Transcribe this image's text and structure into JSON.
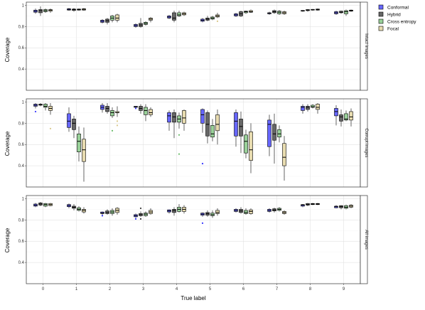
{
  "chart_data": {
    "type": "box",
    "xlabel": "True label",
    "ylabel": "Coverage",
    "categories": [
      "0",
      "1",
      "2",
      "3",
      "4",
      "5",
      "6",
      "7",
      "8",
      "9"
    ],
    "ylim": [
      0.2,
      1.03
    ],
    "yticks": [
      0.4,
      0.6,
      0.8,
      1
    ],
    "ytick_labels": [
      "0.4",
      "0.6",
      "0.8",
      "1"
    ],
    "grid": true,
    "legend_position": "top-right",
    "series": [
      {
        "name": "Conformal",
        "color": "#3333ff"
      },
      {
        "name": "Hybrid",
        "color": "#333333"
      },
      {
        "name": "Cross entropy",
        "color": "#66bb66"
      },
      {
        "name": "Focal",
        "color": "#d9c88a"
      }
    ],
    "panels": [
      {
        "strip": "Intact images",
        "boxes": [
          [
            [
              0.92,
              0.935,
              0.945,
              0.955,
              0.97,
              []
            ],
            [
              0.9,
              0.93,
              0.95,
              0.96,
              0.99,
              []
            ],
            [
              0.93,
              0.94,
              0.95,
              0.96,
              0.97,
              []
            ],
            [
              0.93,
              0.945,
              0.955,
              0.96,
              0.97,
              []
            ]
          ],
          [
            [
              0.95,
              0.955,
              0.962,
              0.968,
              0.975,
              []
            ],
            [
              0.94,
              0.952,
              0.96,
              0.965,
              0.975,
              []
            ],
            [
              0.95,
              0.955,
              0.96,
              0.965,
              0.97,
              []
            ],
            [
              0.95,
              0.955,
              0.962,
              0.968,
              0.975,
              []
            ]
          ],
          [
            [
              0.83,
              0.84,
              0.85,
              0.86,
              0.87,
              []
            ],
            [
              0.82,
              0.84,
              0.855,
              0.87,
              0.88,
              []
            ],
            [
              0.84,
              0.86,
              0.88,
              0.9,
              0.91,
              []
            ],
            [
              0.84,
              0.86,
              0.88,
              0.91,
              0.92,
              []
            ]
          ],
          [
            [
              0.79,
              0.8,
              0.81,
              0.82,
              0.83,
              []
            ],
            [
              0.79,
              0.8,
              0.815,
              0.83,
              0.88,
              []
            ],
            [
              0.81,
              0.82,
              0.83,
              0.84,
              0.85,
              []
            ],
            [
              0.84,
              0.86,
              0.87,
              0.88,
              0.89,
              []
            ]
          ],
          [
            [
              0.87,
              0.88,
              0.89,
              0.9,
              0.91,
              []
            ],
            [
              0.84,
              0.86,
              0.88,
              0.93,
              0.95,
              []
            ],
            [
              0.89,
              0.9,
              0.91,
              0.93,
              0.95,
              []
            ],
            [
              0.9,
              0.91,
              0.92,
              0.93,
              0.94,
              []
            ]
          ],
          [
            [
              0.84,
              0.85,
              0.86,
              0.87,
              0.88,
              []
            ],
            [
              0.85,
              0.86,
              0.87,
              0.88,
              0.9,
              []
            ],
            [
              0.86,
              0.87,
              0.88,
              0.89,
              0.9,
              []
            ],
            [
              0.88,
              0.89,
              0.9,
              0.91,
              0.93,
              [
                0.85
              ]
            ]
          ],
          [
            [
              0.89,
              0.9,
              0.91,
              0.92,
              0.93,
              []
            ],
            [
              0.89,
              0.9,
              0.92,
              0.94,
              0.95,
              []
            ],
            [
              0.92,
              0.93,
              0.94,
              0.945,
              0.95,
              []
            ],
            [
              0.93,
              0.935,
              0.94,
              0.95,
              0.96,
              []
            ]
          ],
          [
            [
              0.91,
              0.92,
              0.925,
              0.93,
              0.94,
              []
            ],
            [
              0.92,
              0.93,
              0.94,
              0.95,
              0.96,
              []
            ],
            [
              0.91,
              0.92,
              0.935,
              0.945,
              0.955,
              []
            ],
            [
              0.91,
              0.92,
              0.93,
              0.94,
              0.95,
              []
            ]
          ],
          [
            [
              0.94,
              0.945,
              0.948,
              0.952,
              0.955,
              []
            ],
            [
              0.94,
              0.95,
              0.955,
              0.96,
              0.965,
              []
            ],
            [
              0.95,
              0.955,
              0.958,
              0.962,
              0.965,
              []
            ],
            [
              0.95,
              0.955,
              0.96,
              0.965,
              0.97,
              []
            ]
          ],
          [
            [
              0.91,
              0.92,
              0.93,
              0.94,
              0.95,
              []
            ],
            [
              0.92,
              0.93,
              0.935,
              0.945,
              0.95,
              []
            ],
            [
              0.9,
              0.92,
              0.94,
              0.95,
              0.96,
              []
            ],
            [
              0.94,
              0.945,
              0.95,
              0.955,
              0.96,
              []
            ]
          ]
        ]
      },
      {
        "strip": "Corrupt images",
        "boxes": [
          [
            [
              0.94,
              0.96,
              0.97,
              0.98,
              0.99,
              [
                0.91
              ]
            ],
            [
              0.96,
              0.97,
              0.975,
              0.98,
              0.99,
              []
            ],
            [
              0.92,
              0.95,
              0.96,
              0.98,
              0.99,
              []
            ],
            [
              0.88,
              0.92,
              0.94,
              0.96,
              0.99,
              [
                0.75
              ]
            ]
          ],
          [
            [
              0.72,
              0.76,
              0.82,
              0.89,
              0.95,
              []
            ],
            [
              0.66,
              0.74,
              0.8,
              0.84,
              0.87,
              []
            ],
            [
              0.44,
              0.53,
              0.63,
              0.7,
              0.77,
              []
            ],
            [
              0.25,
              0.44,
              0.55,
              0.65,
              0.76,
              []
            ]
          ],
          [
            [
              0.9,
              0.93,
              0.95,
              0.97,
              0.99,
              []
            ],
            [
              0.89,
              0.91,
              0.94,
              0.96,
              0.99,
              []
            ],
            [
              0.85,
              0.87,
              0.9,
              0.92,
              0.95,
              [
                0.73
              ]
            ],
            [
              0.86,
              0.9,
              0.9,
              0.91,
              0.96,
              [
                0.78,
                0.82
              ]
            ]
          ],
          [
            [
              0.95,
              0.95,
              0.955,
              0.96,
              0.96,
              [
                0.94
              ]
            ],
            [
              0.89,
              0.92,
              0.94,
              0.96,
              0.98,
              []
            ],
            [
              0.82,
              0.88,
              0.92,
              0.95,
              0.98,
              []
            ],
            [
              0.86,
              0.88,
              0.9,
              0.93,
              0.95,
              []
            ]
          ],
          [
            [
              0.73,
              0.81,
              0.87,
              0.9,
              0.92,
              []
            ],
            [
              0.66,
              0.81,
              0.86,
              0.9,
              0.93,
              []
            ],
            [
              0.75,
              0.81,
              0.84,
              0.87,
              0.9,
              [
                0.69,
                0.51
              ]
            ],
            [
              0.73,
              0.8,
              0.85,
              0.92,
              0.93,
              []
            ]
          ],
          [
            [
              0.71,
              0.8,
              0.88,
              0.93,
              0.94,
              [
                0.42
              ]
            ],
            [
              0.61,
              0.68,
              0.79,
              0.9,
              0.92,
              []
            ],
            [
              0.63,
              0.67,
              0.7,
              0.78,
              0.84,
              []
            ],
            [
              0.6,
              0.73,
              0.79,
              0.88,
              0.93,
              []
            ]
          ],
          [
            [
              0.58,
              0.68,
              0.82,
              0.9,
              0.93,
              []
            ],
            [
              0.52,
              0.68,
              0.77,
              0.84,
              0.91,
              []
            ],
            [
              0.47,
              0.52,
              0.63,
              0.69,
              0.74,
              []
            ],
            [
              0.33,
              0.45,
              0.55,
              0.72,
              0.8,
              []
            ]
          ],
          [
            [
              0.49,
              0.58,
              0.79,
              0.83,
              0.88,
              []
            ],
            [
              0.42,
              0.64,
              0.7,
              0.79,
              0.89,
              []
            ],
            [
              0.62,
              0.67,
              0.7,
              0.74,
              0.78,
              []
            ],
            [
              0.26,
              0.4,
              0.48,
              0.61,
              0.68,
              []
            ]
          ],
          [
            [
              0.89,
              0.92,
              0.95,
              0.96,
              0.98,
              []
            ],
            [
              0.91,
              0.93,
              0.95,
              0.96,
              0.98,
              []
            ],
            [
              0.94,
              0.95,
              0.955,
              0.97,
              0.98,
              []
            ],
            [
              0.89,
              0.93,
              0.95,
              0.98,
              0.99,
              []
            ]
          ],
          [
            [
              0.78,
              0.87,
              0.91,
              0.94,
              0.97,
              []
            ],
            [
              0.77,
              0.82,
              0.86,
              0.88,
              0.93,
              []
            ],
            [
              0.82,
              0.83,
              0.84,
              0.89,
              0.92,
              []
            ],
            [
              0.77,
              0.83,
              0.86,
              0.91,
              0.94,
              []
            ]
          ]
        ]
      },
      {
        "strip": "All images",
        "boxes": [
          [
            [
              0.92,
              0.93,
              0.94,
              0.95,
              0.96,
              []
            ],
            [
              0.93,
              0.94,
              0.95,
              0.96,
              0.97,
              []
            ],
            [
              0.92,
              0.93,
              0.945,
              0.955,
              0.96,
              []
            ],
            [
              0.93,
              0.935,
              0.945,
              0.955,
              0.96,
              []
            ]
          ],
          [
            [
              0.91,
              0.925,
              0.935,
              0.945,
              0.955,
              []
            ],
            [
              0.89,
              0.91,
              0.92,
              0.93,
              0.95,
              []
            ],
            [
              0.88,
              0.89,
              0.9,
              0.915,
              0.93,
              []
            ],
            [
              0.86,
              0.875,
              0.89,
              0.9,
              0.92,
              []
            ]
          ],
          [
            [
              0.84,
              0.86,
              0.865,
              0.875,
              0.88,
              [
                0.84
              ]
            ],
            [
              0.85,
              0.86,
              0.87,
              0.885,
              0.9,
              []
            ],
            [
              0.84,
              0.86,
              0.875,
              0.89,
              0.91,
              []
            ],
            [
              0.85,
              0.87,
              0.89,
              0.91,
              0.92,
              []
            ]
          ],
          [
            [
              0.82,
              0.83,
              0.84,
              0.85,
              0.86,
              [
                0.81
              ]
            ],
            [
              0.83,
              0.84,
              0.85,
              0.86,
              0.88,
              [
                0.91,
                0.81
              ]
            ],
            [
              0.83,
              0.84,
              0.855,
              0.865,
              0.88,
              []
            ],
            [
              0.85,
              0.86,
              0.875,
              0.89,
              0.91,
              []
            ]
          ],
          [
            [
              0.86,
              0.875,
              0.885,
              0.895,
              0.9,
              []
            ],
            [
              0.84,
              0.87,
              0.89,
              0.9,
              0.92,
              []
            ],
            [
              0.87,
              0.88,
              0.9,
              0.92,
              0.95,
              []
            ],
            [
              0.86,
              0.88,
              0.9,
              0.92,
              0.94,
              []
            ]
          ],
          [
            [
              0.83,
              0.845,
              0.855,
              0.865,
              0.87,
              [
                0.77
              ]
            ],
            [
              0.83,
              0.845,
              0.86,
              0.87,
              0.89,
              []
            ],
            [
              0.82,
              0.84,
              0.85,
              0.865,
              0.89,
              []
            ],
            [
              0.84,
              0.86,
              0.87,
              0.89,
              0.91,
              []
            ]
          ],
          [
            [
              0.87,
              0.88,
              0.89,
              0.9,
              0.91,
              []
            ],
            [
              0.86,
              0.87,
              0.885,
              0.9,
              0.92,
              []
            ],
            [
              0.85,
              0.86,
              0.87,
              0.89,
              0.91,
              []
            ],
            [
              0.85,
              0.86,
              0.88,
              0.895,
              0.91,
              []
            ]
          ],
          [
            [
              0.87,
              0.88,
              0.89,
              0.9,
              0.91,
              []
            ],
            [
              0.87,
              0.885,
              0.895,
              0.905,
              0.915,
              []
            ],
            [
              0.88,
              0.89,
              0.9,
              0.91,
              0.92,
              []
            ],
            [
              0.85,
              0.86,
              0.87,
              0.88,
              0.89,
              []
            ]
          ],
          [
            [
              0.92,
              0.93,
              0.94,
              0.945,
              0.95,
              []
            ],
            [
              0.93,
              0.94,
              0.945,
              0.955,
              0.96,
              []
            ],
            [
              0.94,
              0.945,
              0.95,
              0.955,
              0.96,
              []
            ],
            [
              0.94,
              0.945,
              0.95,
              0.955,
              0.96,
              []
            ]
          ],
          [
            [
              0.91,
              0.915,
              0.925,
              0.93,
              0.94,
              []
            ],
            [
              0.9,
              0.915,
              0.925,
              0.935,
              0.94,
              []
            ],
            [
              0.9,
              0.91,
              0.92,
              0.935,
              0.945,
              []
            ],
            [
              0.91,
              0.92,
              0.93,
              0.94,
              0.95,
              []
            ]
          ]
        ]
      }
    ]
  }
}
